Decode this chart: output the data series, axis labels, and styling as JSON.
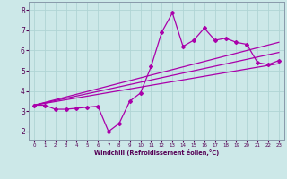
{
  "xlabel": "Windchill (Refroidissement éolien,°C)",
  "background_color": "#cce8e8",
  "grid_color": "#b0d4d4",
  "line_color": "#aa00aa",
  "xlim": [
    -0.5,
    23.5
  ],
  "ylim": [
    1.6,
    8.4
  ],
  "xticks": [
    0,
    1,
    2,
    3,
    4,
    5,
    6,
    7,
    8,
    9,
    10,
    11,
    12,
    13,
    14,
    15,
    16,
    17,
    18,
    19,
    20,
    21,
    22,
    23
  ],
  "yticks": [
    2,
    3,
    4,
    5,
    6,
    7,
    8
  ],
  "line1_x": [
    0,
    1,
    2,
    3,
    4,
    5,
    6,
    7,
    8,
    9,
    10,
    11,
    12,
    13,
    14,
    15,
    16,
    17,
    18,
    19,
    20,
    21,
    22,
    23
  ],
  "line1_y": [
    3.3,
    3.3,
    3.1,
    3.1,
    3.15,
    3.2,
    3.25,
    2.0,
    2.4,
    3.5,
    3.9,
    5.2,
    6.9,
    7.85,
    6.2,
    6.5,
    7.1,
    6.5,
    6.6,
    6.4,
    6.3,
    5.4,
    5.3,
    5.5
  ],
  "line2_x": [
    0,
    23
  ],
  "line2_y": [
    3.3,
    6.4
  ],
  "line3_x": [
    0,
    23
  ],
  "line3_y": [
    3.3,
    5.9
  ],
  "line4_x": [
    0,
    23
  ],
  "line4_y": [
    3.3,
    5.35
  ]
}
